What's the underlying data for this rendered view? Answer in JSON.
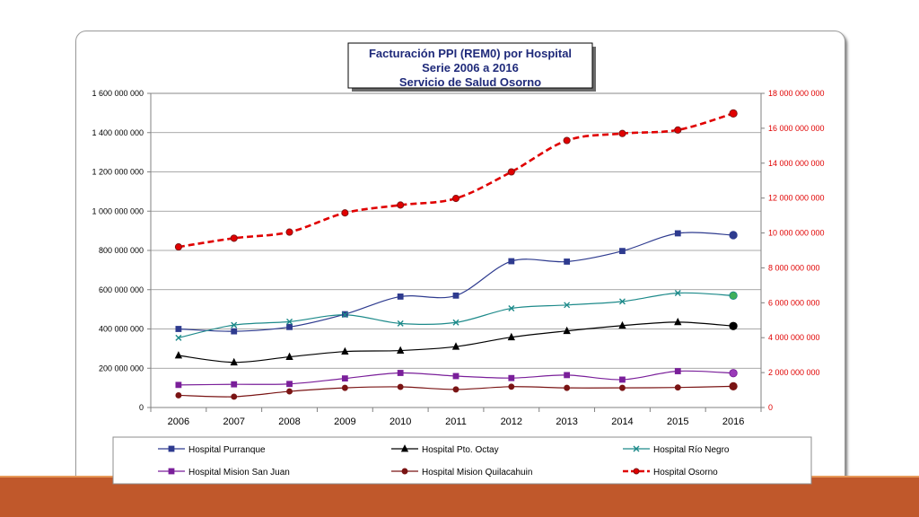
{
  "chart_data": {
    "type": "line",
    "title": [
      "Facturación PPI (REM0) por Hospital",
      "Serie 2006 a 2016",
      "Servicio de Salud Osorno"
    ],
    "x": [
      "2006",
      "2007",
      "2008",
      "2009",
      "2010",
      "2011",
      "2012",
      "2013",
      "2014",
      "2015",
      "2016"
    ],
    "y_left": {
      "range": [
        0,
        1600000000
      ],
      "ticks": [
        0,
        200000000,
        400000000,
        600000000,
        800000000,
        1000000000,
        1200000000,
        1400000000,
        1600000000
      ],
      "tick_labels": [
        "0",
        "200 000 000",
        "400 000 000",
        "600 000 000",
        "800 000 000",
        "1 000 000 000",
        "1 200 000 000",
        "1 400 000 000",
        "1 600 000 000"
      ],
      "color": "#000000"
    },
    "y_right": {
      "range": [
        0,
        18000000000
      ],
      "ticks": [
        0,
        2000000000,
        4000000000,
        6000000000,
        8000000000,
        10000000000,
        12000000000,
        14000000000,
        16000000000,
        18000000000
      ],
      "tick_labels": [
        "0",
        "2 000 000 000",
        "4 000 000 000",
        "6 000 000 000",
        "8 000 000 000",
        "10 000 000 000",
        "12 000 000 000",
        "14 000 000 000",
        "16 000 000 000",
        "18 000 000 000"
      ],
      "color": "#e00000"
    },
    "grid": true,
    "legend_position": "bottom",
    "series": [
      {
        "name": "Hospital Purranque",
        "axis": "left",
        "color": "#2e3b8f",
        "marker": "square",
        "dashed": false,
        "values": [
          400000000,
          388000000,
          410000000,
          475000000,
          565000000,
          570000000,
          745000000,
          743000000,
          797000000,
          887000000,
          878000000
        ]
      },
      {
        "name": "Hospital Pto. Octay",
        "axis": "left",
        "color": "#000000",
        "marker": "triangle",
        "dashed": false,
        "values": [
          265000000,
          230000000,
          258000000,
          285000000,
          290000000,
          310000000,
          358000000,
          390000000,
          417000000,
          435000000,
          415000000
        ]
      },
      {
        "name": "Hospital Río Negro",
        "axis": "left",
        "color": "#1d8a8a",
        "marker": "x",
        "dashed": false,
        "values": [
          355000000,
          420000000,
          437000000,
          472000000,
          428000000,
          433000000,
          505000000,
          522000000,
          540000000,
          583000000,
          570000000
        ]
      },
      {
        "name": "Hospital Mision San Juan",
        "axis": "left",
        "color": "#7a1f9a",
        "marker": "square",
        "dashed": false,
        "values": [
          115000000,
          118000000,
          120000000,
          148000000,
          176000000,
          160000000,
          150000000,
          165000000,
          142000000,
          185000000,
          175000000
        ]
      },
      {
        "name": "Hospital Mision Quilacahuin",
        "axis": "left",
        "color": "#7a1414",
        "marker": "circle",
        "dashed": false,
        "values": [
          62000000,
          55000000,
          82000000,
          100000000,
          105000000,
          92000000,
          106000000,
          100000000,
          100000000,
          102000000,
          108000000
        ]
      },
      {
        "name": "Hospital Osorno",
        "axis": "right",
        "color": "#e00000",
        "marker": "circle",
        "dashed": true,
        "values": [
          9200000000,
          9700000000,
          10050000000,
          11150000000,
          11600000000,
          11980000000,
          13500000000,
          15300000000,
          15700000000,
          15900000000,
          16850000000
        ]
      }
    ]
  }
}
